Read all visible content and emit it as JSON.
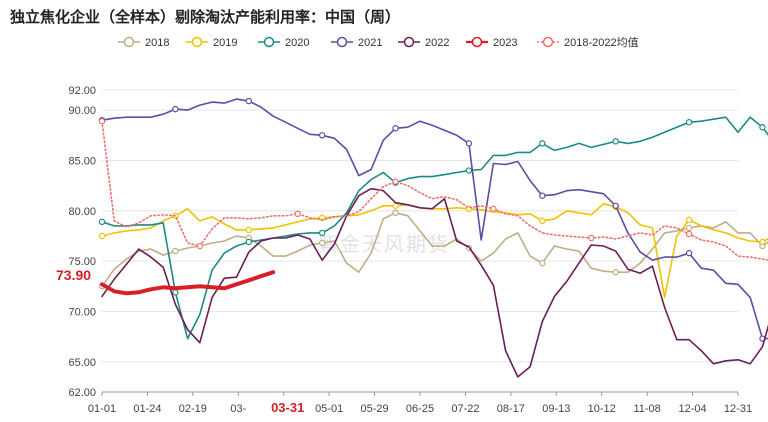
{
  "title": "独立焦化企业（全样本）剔除淘汰产能利用率：中国（周）",
  "watermark": "紫金天风期货",
  "chart_data": {
    "type": "line",
    "title": "独立焦化企业（全样本）剔除淘汰产能利用率：中国（周）",
    "x_tick_labels": [
      "01-01",
      "01-24",
      "02-19",
      "03-",
      "03-31",
      "05-01",
      "05-29",
      "06-25",
      "07-22",
      "08-17",
      "09-13",
      "10-12",
      "11-08",
      "12-04",
      "12-31"
    ],
    "highlight_tick": "03-31",
    "y_tick_labels": [
      "62.00",
      "65.00",
      "70.00",
      "75.00",
      "80.00",
      "85.00",
      "90.00",
      "92.00"
    ],
    "ylim": [
      62,
      92
    ],
    "y_ticks": [
      62,
      65,
      70,
      75,
      80,
      85,
      90,
      92
    ],
    "grid": true,
    "legend_position": "top",
    "last_value_label": "73.90",
    "series": [
      {
        "name": "2018",
        "color": "#bfae86",
        "marker_every": 6,
        "values": [
          72.5,
          74.2,
          75.2,
          76.0,
          76.2,
          75.6,
          76.0,
          76.3,
          76.5,
          76.8,
          77.0,
          77.5,
          77.3,
          76.5,
          75.5,
          75.5,
          76.0,
          76.6,
          76.8,
          77.0,
          74.8,
          73.9,
          75.8,
          79.2,
          79.8,
          79.5,
          78.0,
          76.5,
          76.5,
          77.2,
          76.3,
          75.0,
          75.8,
          77.2,
          77.8,
          75.5,
          74.8,
          76.5,
          76.2,
          76.0,
          74.3,
          74.0,
          73.9,
          73.9,
          74.8,
          76.2,
          77.8,
          78.0,
          78.3,
          78.5,
          78.3,
          78.9,
          77.8,
          77.8,
          76.5,
          77.3,
          76.5,
          76.0,
          76.4,
          77.0
        ]
      },
      {
        "name": "2019",
        "color": "#f2c200",
        "marker_every": 6,
        "values": [
          77.5,
          77.8,
          78.0,
          78.1,
          78.3,
          79.0,
          79.5,
          80.2,
          79.0,
          79.4,
          78.7,
          78.1,
          78.1,
          78.2,
          78.3,
          78.6,
          78.9,
          79.2,
          79.3,
          79.4,
          79.5,
          79.6,
          80.0,
          80.5,
          80.5,
          80.6,
          80.3,
          80.2,
          80.2,
          80.3,
          80.2,
          80.1,
          79.9,
          79.8,
          79.6,
          79.7,
          79.0,
          79.2,
          80.0,
          79.8,
          79.6,
          80.7,
          80.4,
          79.8,
          78.6,
          78.3,
          71.4,
          77.5,
          79.1,
          78.5,
          78.1,
          77.8,
          77.3,
          77.0,
          76.9,
          77.6,
          77.9,
          77.9,
          77.9,
          77.9
        ]
      },
      {
        "name": "2020",
        "color": "#1c8a85",
        "marker_every": 6,
        "values": [
          78.9,
          78.5,
          78.5,
          78.6,
          78.6,
          78.8,
          71.9,
          67.3,
          69.7,
          74.1,
          75.8,
          76.5,
          76.9,
          77.1,
          77.3,
          77.5,
          77.7,
          77.8,
          77.8,
          78.5,
          79.8,
          82.0,
          83.1,
          83.8,
          82.8,
          83.2,
          83.4,
          83.4,
          83.6,
          83.8,
          84.0,
          84.1,
          85.5,
          85.5,
          85.8,
          85.8,
          86.7,
          86.0,
          86.3,
          86.7,
          86.3,
          86.6,
          86.9,
          86.7,
          86.9,
          87.3,
          87.8,
          88.3,
          88.8,
          88.9,
          89.1,
          89.3,
          87.8,
          89.3,
          88.3,
          86.7,
          88.3,
          89.2
        ]
      },
      {
        "name": "2021",
        "color": "#5b4ea3",
        "marker_every": 6,
        "values": [
          89.0,
          89.2,
          89.3,
          89.3,
          89.3,
          89.6,
          90.1,
          90.0,
          90.5,
          90.8,
          90.7,
          91.1,
          90.9,
          90.3,
          89.4,
          88.8,
          88.2,
          87.6,
          87.5,
          87.2,
          86.1,
          83.5,
          84.1,
          87.0,
          88.2,
          88.3,
          88.9,
          88.5,
          88.0,
          87.5,
          86.7,
          77.1,
          84.7,
          84.6,
          84.9,
          83.0,
          81.5,
          81.6,
          82.0,
          82.1,
          81.9,
          81.7,
          80.5,
          77.8,
          75.9,
          75.1,
          75.4,
          75.4,
          75.8,
          74.3,
          74.1,
          72.8,
          72.7,
          71.4,
          67.3,
          67.3,
          68.0,
          68.6,
          70.0,
          69.4,
          70.1
        ]
      },
      {
        "name": "2022",
        "color": "#6a1f56",
        "marker_every": 0,
        "values": [
          71.5,
          73.2,
          74.7,
          76.2,
          75.4,
          74.4,
          70.7,
          68.2,
          66.9,
          71.4,
          73.3,
          73.4,
          75.9,
          77.0,
          77.3,
          77.3,
          77.6,
          77.2,
          75.1,
          76.7,
          79.5,
          81.5,
          82.2,
          82.0,
          80.8,
          80.6,
          80.3,
          80.2,
          81.2,
          77.0,
          76.4,
          74.6,
          72.6,
          66.1,
          63.5,
          64.5,
          69.0,
          71.5,
          73.0,
          74.8,
          76.6,
          76.5,
          76.0,
          74.2,
          73.8,
          74.5,
          70.4,
          67.2,
          67.2,
          66.1,
          64.8,
          65.1,
          65.2,
          64.8,
          66.5,
          70.8,
          71.3,
          71.8
        ]
      },
      {
        "name": "2023",
        "color": "#d71f27",
        "marker_every": 0,
        "thick": true,
        "values": [
          72.7,
          72.0,
          71.8,
          71.9,
          72.2,
          72.4,
          72.3,
          72.4,
          72.5,
          72.4,
          72.3,
          72.7,
          73.1,
          73.5,
          73.9
        ]
      },
      {
        "name": "2018-2022均值",
        "color": "#ef6f6f",
        "dotted": true,
        "marker_every": 8,
        "values": [
          88.9,
          79.0,
          78.4,
          78.8,
          79.5,
          79.6,
          79.5,
          76.8,
          76.5,
          78.2,
          79.3,
          79.3,
          79.2,
          79.3,
          79.5,
          79.5,
          79.7,
          79.3,
          79.1,
          79.4,
          79.5,
          79.9,
          81.2,
          82.4,
          82.9,
          82.5,
          81.8,
          81.2,
          81.4,
          81.1,
          80.3,
          80.5,
          80.2,
          79.7,
          79.5,
          78.5,
          77.8,
          77.6,
          77.5,
          77.4,
          77.3,
          77.4,
          77.2,
          77.5,
          77.8,
          77.6,
          78.5,
          78.3,
          77.7,
          77.1,
          76.9,
          76.5,
          75.5,
          75.4,
          75.2,
          75.0,
          76.0,
          76.7,
          76.9,
          77.2
        ]
      }
    ]
  }
}
